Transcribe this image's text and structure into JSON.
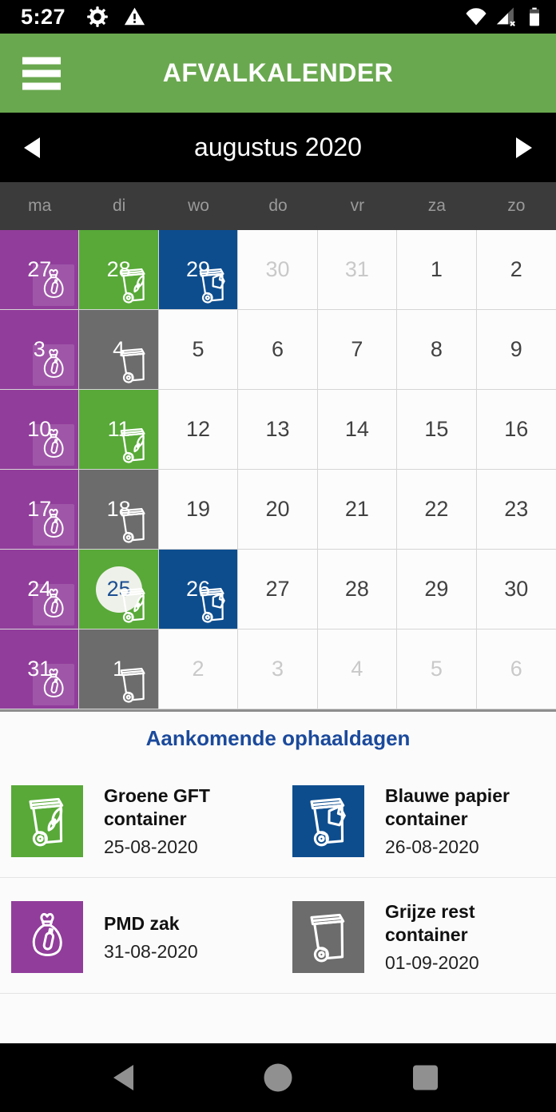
{
  "status_bar": {
    "time": "5:27",
    "left_icons": [
      "settings-icon",
      "warning-icon"
    ],
    "right_icons": [
      "wifi-icon",
      "cell-signal-no-data-icon",
      "battery-icon"
    ]
  },
  "header": {
    "title": "AFVALKALENDER",
    "menu_icon": "hamburger-menu-icon"
  },
  "month_nav": {
    "label": "augustus 2020",
    "prev_icon": "previous-month-arrow",
    "next_icon": "next-month-arrow"
  },
  "weekdays": [
    "ma",
    "di",
    "wo",
    "do",
    "vr",
    "za",
    "zo"
  ],
  "calendar": {
    "weeks": [
      [
        {
          "day": 27,
          "type": "pmd"
        },
        {
          "day": 28,
          "type": "gft"
        },
        {
          "day": 29,
          "type": "papier"
        },
        {
          "day": 30,
          "muted": true
        },
        {
          "day": 31,
          "muted": true
        },
        {
          "day": 1
        },
        {
          "day": 2
        }
      ],
      [
        {
          "day": 3,
          "type": "pmd"
        },
        {
          "day": 4,
          "type": "rest"
        },
        {
          "day": 5
        },
        {
          "day": 6
        },
        {
          "day": 7
        },
        {
          "day": 8
        },
        {
          "day": 9
        }
      ],
      [
        {
          "day": 10,
          "type": "pmd"
        },
        {
          "day": 11,
          "type": "gft"
        },
        {
          "day": 12
        },
        {
          "day": 13
        },
        {
          "day": 14
        },
        {
          "day": 15
        },
        {
          "day": 16
        }
      ],
      [
        {
          "day": 17,
          "type": "pmd"
        },
        {
          "day": 18,
          "type": "rest"
        },
        {
          "day": 19
        },
        {
          "day": 20
        },
        {
          "day": 21
        },
        {
          "day": 22
        },
        {
          "day": 23
        }
      ],
      [
        {
          "day": 24,
          "type": "pmd"
        },
        {
          "day": 25,
          "type": "gft",
          "today": true
        },
        {
          "day": 26,
          "type": "papier"
        },
        {
          "day": 27
        },
        {
          "day": 28
        },
        {
          "day": 29
        },
        {
          "day": 30
        }
      ],
      [
        {
          "day": 31,
          "type": "pmd"
        },
        {
          "day": 1,
          "type": "rest"
        },
        {
          "day": 2,
          "muted": true
        },
        {
          "day": 3,
          "muted": true
        },
        {
          "day": 4,
          "muted": true
        },
        {
          "day": 5,
          "muted": true
        },
        {
          "day": 6,
          "muted": true
        }
      ]
    ]
  },
  "upcoming": {
    "title": "Aankomende ophaaldagen",
    "items": [
      {
        "name": "Groene GFT\ncontainer",
        "date": "25-08-2020",
        "type": "gft",
        "icon": "green-gft-container-icon"
      },
      {
        "name": "Blauwe papier\ncontainer",
        "date": "26-08-2020",
        "type": "papier",
        "icon": "blue-paper-container-icon"
      },
      {
        "name": "PMD zak",
        "date": "31-08-2020",
        "type": "pmd",
        "icon": "pmd-bag-icon"
      },
      {
        "name": "Grijze rest container",
        "date": "01-09-2020",
        "type": "rest",
        "icon": "grey-rest-container-icon"
      }
    ]
  },
  "android_nav": {
    "icons": [
      "back-icon",
      "home-icon",
      "recents-icon"
    ]
  },
  "colors": {
    "header_green": "#6aa84f",
    "cell_green": "#58a938",
    "pmd_purple": "#913d9b",
    "papier_blue": "#0d4d8e",
    "rest_gray": "#6c6c6c",
    "heading_blue": "#1b4a9c",
    "today_circle": "#eef1e9",
    "today_text": "#1b4e92"
  }
}
